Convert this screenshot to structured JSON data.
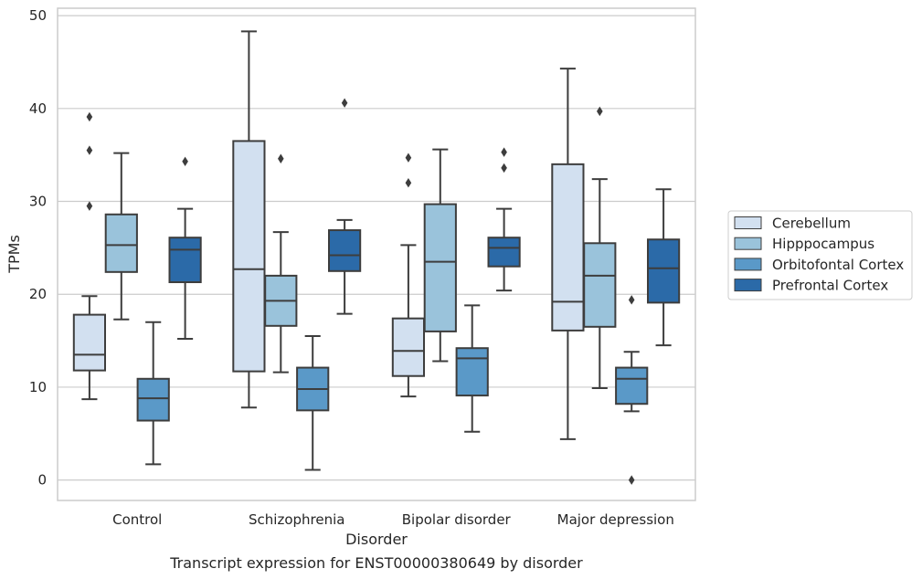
{
  "caption": "Transcript expression for ENST00000380649 by disorder",
  "chart_data": {
    "type": "box",
    "xlabel": "Disorder",
    "ylabel": "TPMs",
    "ylim": [
      -2.2,
      50.8
    ],
    "yticks": [
      0,
      10,
      20,
      30,
      40,
      50
    ],
    "grid": "horizontal",
    "legend_position": "right",
    "categories": [
      "Control",
      "Schizophrenia",
      "Bipolar disorder",
      "Major depression"
    ],
    "series": [
      {
        "name": "Cerebellum",
        "color": "#d2e0f0",
        "boxes": [
          {
            "q1": 11.8,
            "median": 13.5,
            "q3": 17.8,
            "whisker_low": 8.7,
            "whisker_high": 19.8,
            "outliers": [
              29.5,
              35.5,
              39.1
            ]
          },
          {
            "q1": 11.7,
            "median": 22.7,
            "q3": 36.5,
            "whisker_low": 7.8,
            "whisker_high": 48.3,
            "outliers": []
          },
          {
            "q1": 11.2,
            "median": 13.9,
            "q3": 17.4,
            "whisker_low": 9.0,
            "whisker_high": 25.3,
            "outliers": [
              32.0,
              34.7
            ]
          },
          {
            "q1": 16.1,
            "median": 19.2,
            "q3": 34.0,
            "whisker_low": 4.4,
            "whisker_high": 44.3,
            "outliers": []
          }
        ]
      },
      {
        "name": "Hipppocampus",
        "color": "#9ac3db",
        "boxes": [
          {
            "q1": 22.4,
            "median": 25.3,
            "q3": 28.6,
            "whisker_low": 17.3,
            "whisker_high": 35.2,
            "outliers": []
          },
          {
            "q1": 16.6,
            "median": 19.3,
            "q3": 22.0,
            "whisker_low": 11.6,
            "whisker_high": 26.7,
            "outliers": [
              34.6
            ]
          },
          {
            "q1": 16.0,
            "median": 23.5,
            "q3": 29.7,
            "whisker_low": 12.8,
            "whisker_high": 35.6,
            "outliers": []
          },
          {
            "q1": 16.5,
            "median": 22.0,
            "q3": 25.5,
            "whisker_low": 9.9,
            "whisker_high": 32.4,
            "outliers": [
              39.7
            ]
          }
        ]
      },
      {
        "name": "Orbitofontal Cortex",
        "color": "#5a99c8",
        "boxes": [
          {
            "q1": 6.4,
            "median": 8.8,
            "q3": 10.9,
            "whisker_low": 1.7,
            "whisker_high": 17.0,
            "outliers": []
          },
          {
            "q1": 7.5,
            "median": 9.8,
            "q3": 12.1,
            "whisker_low": 1.1,
            "whisker_high": 15.5,
            "outliers": []
          },
          {
            "q1": 9.1,
            "median": 13.1,
            "q3": 14.2,
            "whisker_low": 5.2,
            "whisker_high": 18.8,
            "outliers": []
          },
          {
            "q1": 8.2,
            "median": 10.9,
            "q3": 12.1,
            "whisker_low": 7.4,
            "whisker_high": 13.8,
            "outliers": [
              0.0,
              19.4
            ]
          }
        ]
      },
      {
        "name": "Prefrontal Cortex",
        "color": "#2b6aa8",
        "boxes": [
          {
            "q1": 21.3,
            "median": 24.8,
            "q3": 26.1,
            "whisker_low": 15.2,
            "whisker_high": 29.2,
            "outliers": [
              34.3
            ]
          },
          {
            "q1": 22.5,
            "median": 24.2,
            "q3": 26.9,
            "whisker_low": 17.9,
            "whisker_high": 28.0,
            "outliers": [
              40.6
            ]
          },
          {
            "q1": 23.0,
            "median": 25.0,
            "q3": 26.1,
            "whisker_low": 20.4,
            "whisker_high": 29.2,
            "outliers": [
              33.6,
              35.3
            ]
          },
          {
            "q1": 19.1,
            "median": 22.8,
            "q3": 25.9,
            "whisker_low": 14.5,
            "whisker_high": 31.3,
            "outliers": []
          }
        ]
      }
    ]
  }
}
